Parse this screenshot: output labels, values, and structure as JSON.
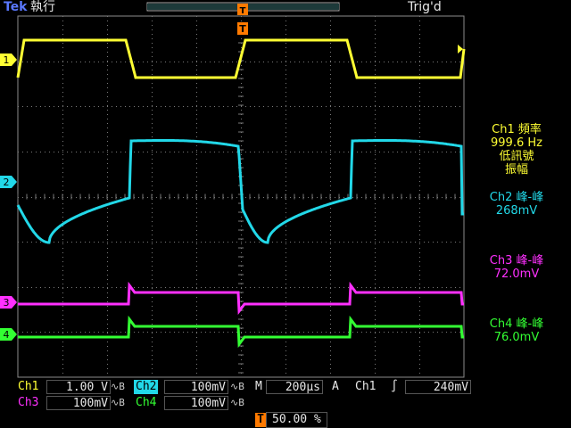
{
  "header": {
    "brand": "Tek",
    "run_state": "執行",
    "trigger_state": "Trig'd",
    "trigger_marker": "T"
  },
  "channel_markers": [
    "1",
    "2",
    "3",
    "4"
  ],
  "measurements": {
    "m1": {
      "label": "Ch1 頻率",
      "value": "999.6 Hz",
      "note1": "低訊號",
      "note2": "振幅"
    },
    "m2": {
      "label": "Ch2 峰-峰",
      "value": "268mV"
    },
    "m3": {
      "label": "Ch3 峰-峰",
      "value": "72.0mV"
    },
    "m4": {
      "label": "Ch4 峰-峰",
      "value": "76.0mV"
    }
  },
  "bottom": {
    "ch1": {
      "label": "Ch1",
      "scale": "1.00 V",
      "bw": "∿B"
    },
    "ch2": {
      "label": "Ch2",
      "scale": "100mV",
      "bw": "∿B"
    },
    "ch3": {
      "label": "Ch3",
      "scale": "100mV",
      "bw": "∿B"
    },
    "ch4": {
      "label": "Ch4",
      "scale": "100mV",
      "bw": "∿B"
    },
    "timebase_label": "M",
    "timebase": "200µs",
    "trigger_mode": "A",
    "trigger_source": "Ch1",
    "trigger_slope": "∫",
    "trigger_level": "240mV",
    "trigger_position_marker": "T",
    "trigger_position": "50.00 %"
  },
  "colors": {
    "ch1": "#ffff33",
    "ch2": "#22d8e8",
    "ch3": "#ff30ff",
    "ch4": "#33ff33",
    "trigger": "#ff7a00",
    "graticule": "#8c8c8c"
  }
}
